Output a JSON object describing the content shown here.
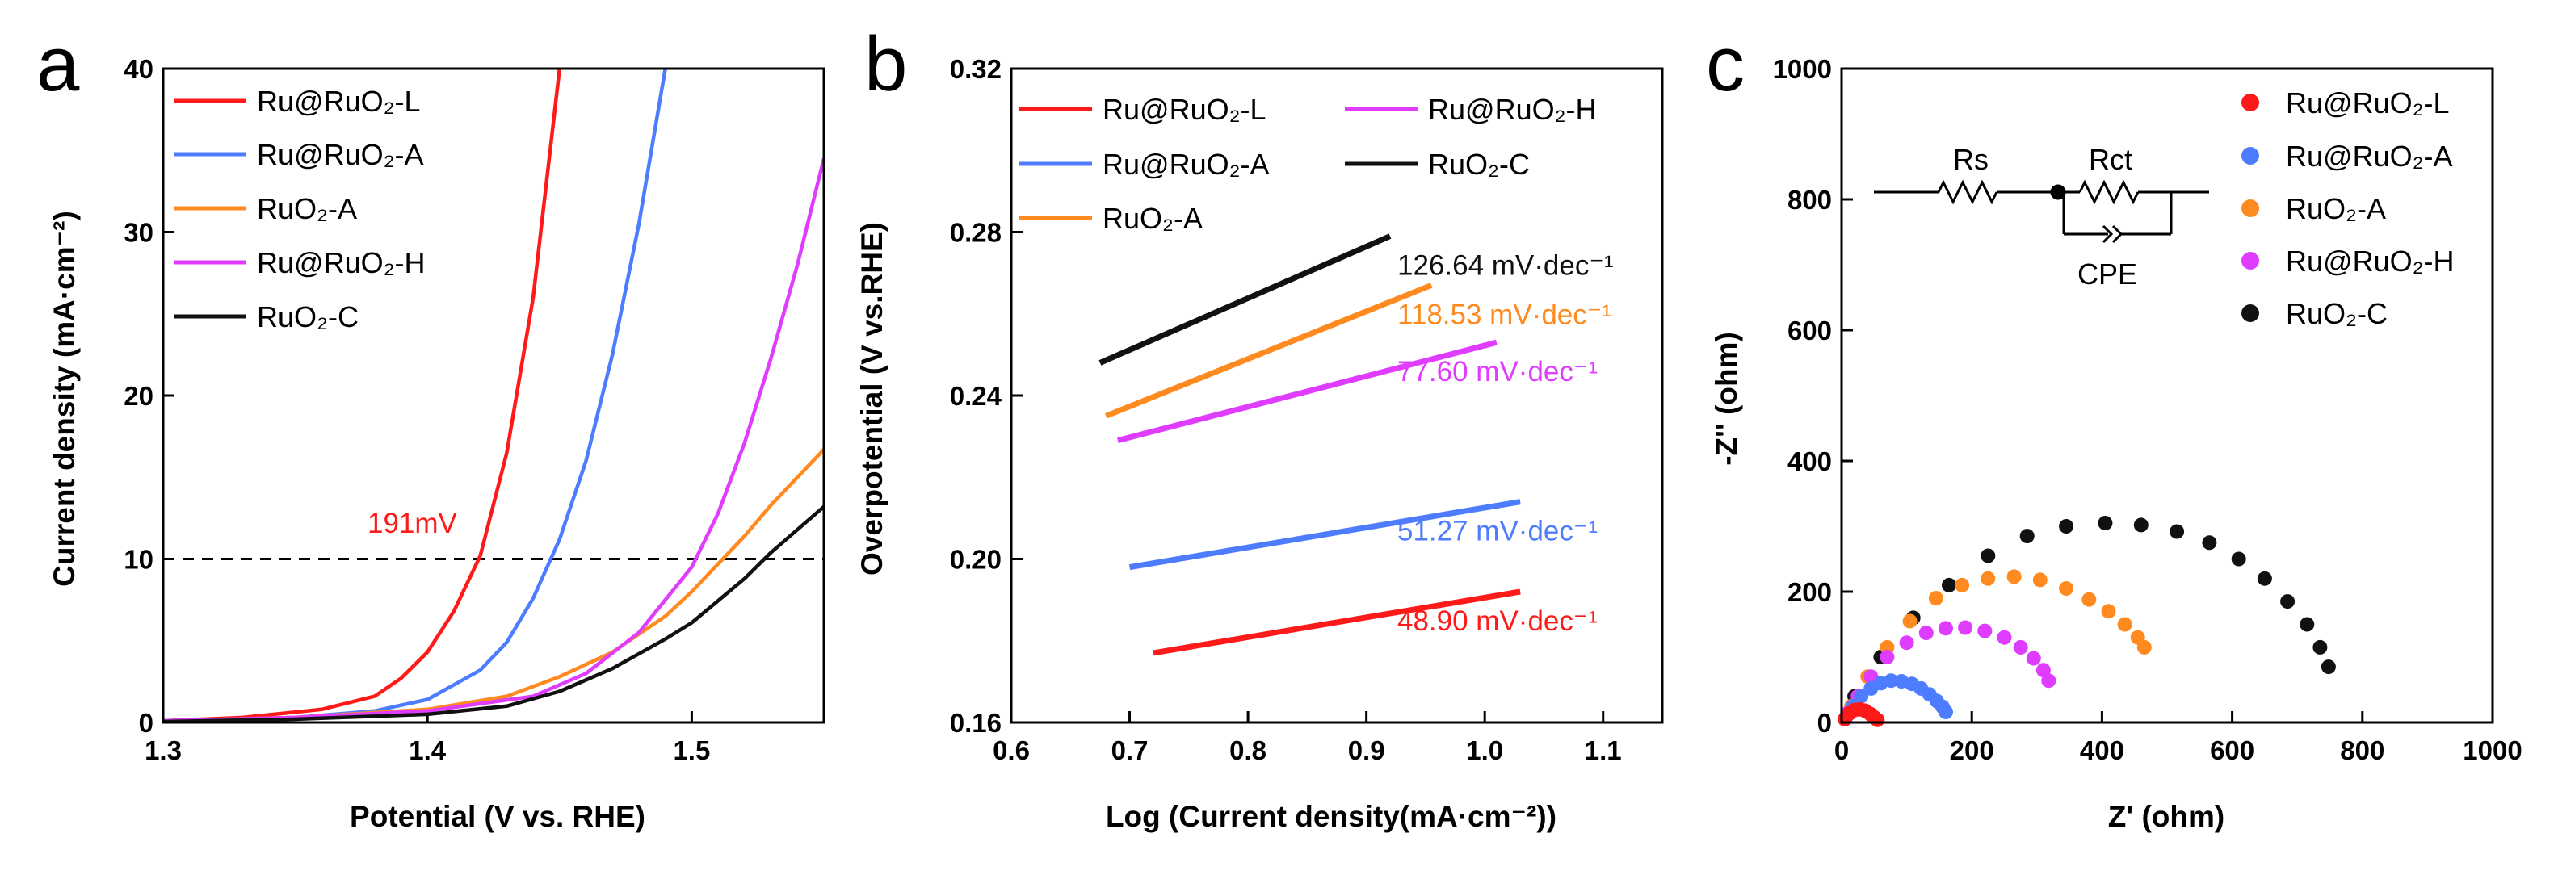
{
  "colors": {
    "Ru@RuO2-L": "#ff1a1a",
    "Ru@RuO2-A": "#4d7cff",
    "RuO2-A": "#ff8a1f",
    "Ru@RuO2-H": "#e03cff",
    "RuO2-C": "#111111"
  },
  "chart_data": [
    {
      "panel": "a",
      "type": "line",
      "xlabel": "Potential (V vs. RHE)",
      "ylabel": "Current density (mA·cm⁻²)",
      "xlim": [
        1.3,
        1.55
      ],
      "ylim": [
        0,
        40
      ],
      "xticks": [
        "1.3",
        "1.4",
        "1.5"
      ],
      "xtick_values": [
        1.3,
        1.4,
        1.5
      ],
      "yticks": [
        "0",
        "10",
        "20",
        "30",
        "40"
      ],
      "ytick_values": [
        0,
        10,
        20,
        30,
        40
      ],
      "legend": [
        "Ru@RuO₂-L",
        "Ru@RuO₂-A",
        "RuO₂-A",
        "Ru@RuO₂-H",
        "RuO₂-C"
      ],
      "reference_line": {
        "y": 10,
        "style": "dashed"
      },
      "annotation": "191mV",
      "series": [
        {
          "name": "Ru@RuO2-L",
          "x": [
            1.3,
            1.33,
            1.36,
            1.38,
            1.39,
            1.4,
            1.41,
            1.42,
            1.43,
            1.44,
            1.45
          ],
          "y": [
            0.1,
            0.3,
            0.8,
            1.6,
            2.7,
            4.3,
            6.8,
            10.2,
            16.5,
            26,
            40
          ]
        },
        {
          "name": "Ru@RuO2-A",
          "x": [
            1.3,
            1.35,
            1.38,
            1.4,
            1.42,
            1.43,
            1.44,
            1.45,
            1.46,
            1.47,
            1.48,
            1.49
          ],
          "y": [
            0.1,
            0.3,
            0.7,
            1.4,
            3.2,
            4.9,
            7.6,
            11.2,
            16,
            22.5,
            30.5,
            40
          ]
        },
        {
          "name": "RuO2-A",
          "x": [
            1.3,
            1.35,
            1.4,
            1.43,
            1.45,
            1.47,
            1.49,
            1.5,
            1.51,
            1.52,
            1.53,
            1.55
          ],
          "y": [
            0.1,
            0.3,
            0.8,
            1.6,
            2.8,
            4.3,
            6.5,
            8.0,
            9.7,
            11.4,
            13.3,
            16.7
          ]
        },
        {
          "name": "Ru@RuO2-H",
          "x": [
            1.3,
            1.35,
            1.4,
            1.44,
            1.46,
            1.48,
            1.5,
            1.51,
            1.52,
            1.53,
            1.54,
            1.55
          ],
          "y": [
            0.1,
            0.3,
            0.7,
            1.6,
            3.0,
            5.5,
            9.5,
            12.8,
            17.1,
            22.3,
            28.0,
            34.5
          ]
        },
        {
          "name": "RuO2-C",
          "x": [
            1.3,
            1.35,
            1.4,
            1.43,
            1.45,
            1.47,
            1.49,
            1.5,
            1.52,
            1.53,
            1.55
          ],
          "y": [
            0.05,
            0.2,
            0.5,
            1.0,
            1.9,
            3.3,
            5.1,
            6.1,
            8.8,
            10.4,
            13.2
          ]
        }
      ]
    },
    {
      "panel": "b",
      "type": "line",
      "xlabel": "Log (Current density(mA·cm⁻²))",
      "ylabel": "Overpotential (V vs.RHE)",
      "xlim": [
        0.6,
        1.15
      ],
      "ylim": [
        0.16,
        0.32
      ],
      "xticks": [
        "0.6",
        "0.7",
        "0.8",
        "0.9",
        "1.0",
        "1.1"
      ],
      "xtick_values": [
        0.6,
        0.7,
        0.8,
        0.9,
        1.0,
        1.1
      ],
      "yticks": [
        "0.16",
        "0.20",
        "0.24",
        "0.28",
        "0.32"
      ],
      "ytick_values": [
        0.16,
        0.2,
        0.24,
        0.28,
        0.32
      ],
      "legend": [
        "Ru@RuO₂-L",
        "Ru@RuO₂-H",
        "Ru@RuO₂-A",
        "RuO₂-C",
        "RuO₂-A"
      ],
      "series": [
        {
          "name": "Ru@RuO2-L",
          "x": [
            0.72,
            1.03
          ],
          "y": [
            0.177,
            0.192
          ],
          "slope_label": "48.90 mV·dec⁻¹"
        },
        {
          "name": "Ru@RuO2-A",
          "x": [
            0.7,
            1.03
          ],
          "y": [
            0.198,
            0.214
          ],
          "slope_label": "51.27 mV·dec⁻¹"
        },
        {
          "name": "Ru@RuO2-H",
          "x": [
            0.69,
            1.01
          ],
          "y": [
            0.229,
            0.253
          ],
          "slope_label": "77.60 mV·dec⁻¹"
        },
        {
          "name": "RuO2-A",
          "x": [
            0.68,
            0.955
          ],
          "y": [
            0.235,
            0.267
          ],
          "slope_label": "118.53 mV·dec⁻¹"
        },
        {
          "name": "RuO2-C",
          "x": [
            0.675,
            0.92
          ],
          "y": [
            0.248,
            0.279
          ],
          "slope_label": "126.64 mV·dec⁻¹"
        }
      ]
    },
    {
      "panel": "c",
      "type": "scatter",
      "xlabel": "Z'  (ohm)",
      "ylabel": "-Z'' (ohm)",
      "xlim": [
        0,
        1000
      ],
      "ylim": [
        0,
        1000
      ],
      "xticks": [
        "0",
        "200",
        "400",
        "600",
        "800",
        "1000"
      ],
      "xtick_values": [
        0,
        200,
        400,
        600,
        800,
        1000
      ],
      "yticks": [
        "0",
        "200",
        "400",
        "600",
        "800",
        "1000"
      ],
      "ytick_values": [
        0,
        200,
        400,
        600,
        800,
        1000
      ],
      "legend": [
        "Ru@RuO₂-L",
        "Ru@RuO₂-A",
        "RuO₂-A",
        "Ru@RuO₂-H",
        "RuO₂-C"
      ],
      "circuit_labels": {
        "rs": "Rs",
        "rct": "Rct",
        "cpe": "CPE"
      },
      "series": [
        {
          "name": "Ru@RuO2-L",
          "x": [
            5,
            12,
            20,
            28,
            36,
            44,
            50,
            55
          ],
          "y": [
            5,
            14,
            19,
            20,
            18,
            13,
            8,
            4
          ]
        },
        {
          "name": "Ru@RuO2-A",
          "x": [
            8,
            18,
            30,
            45,
            60,
            76,
            92,
            108,
            122,
            135,
            146,
            155,
            160
          ],
          "y": [
            10,
            25,
            40,
            52,
            60,
            64,
            63,
            59,
            52,
            43,
            33,
            24,
            16
          ]
        },
        {
          "name": "Ru@RuO2-H",
          "x": [
            10,
            25,
            45,
            70,
            100,
            130,
            160,
            190,
            220,
            250,
            275,
            295,
            310,
            318
          ],
          "y": [
            15,
            40,
            70,
            100,
            122,
            137,
            144,
            145,
            140,
            130,
            115,
            98,
            80,
            64
          ]
        },
        {
          "name": "RuO2-A",
          "x": [
            15,
            40,
            70,
            105,
            145,
            185,
            225,
            265,
            305,
            345,
            380,
            410,
            435,
            455,
            465
          ],
          "y": [
            25,
            70,
            115,
            155,
            190,
            210,
            220,
            223,
            218,
            205,
            188,
            170,
            150,
            130,
            115
          ]
        },
        {
          "name": "RuO2-C",
          "x": [
            20,
            60,
            110,
            165,
            225,
            285,
            345,
            405,
            460,
            515,
            565,
            610,
            650,
            685,
            715,
            735,
            748
          ],
          "y": [
            40,
            100,
            160,
            210,
            255,
            285,
            300,
            305,
            302,
            292,
            275,
            250,
            220,
            185,
            150,
            115,
            85
          ]
        }
      ]
    }
  ]
}
